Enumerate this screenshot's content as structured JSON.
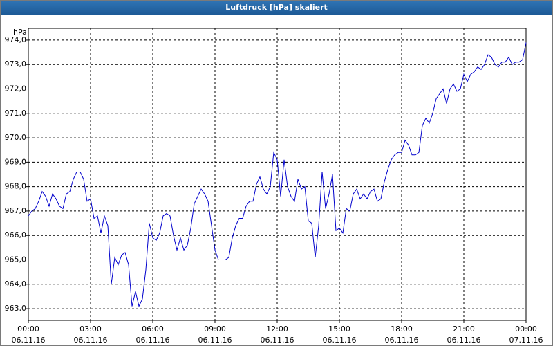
{
  "chart_data": {
    "type": "line",
    "title": "Luftdruck [hPa] skaliert",
    "y_label": "hPa",
    "x": [
      0,
      10,
      20,
      30,
      40,
      50,
      60,
      70,
      80,
      90,
      100,
      110,
      120,
      130,
      140,
      150,
      160,
      170,
      180,
      190,
      200,
      210,
      220,
      230,
      240,
      250,
      260,
      270,
      280,
      290,
      300,
      310,
      320,
      330,
      340,
      350,
      360,
      370,
      380,
      390,
      400,
      410,
      420,
      430,
      440,
      450,
      460,
      470,
      480,
      490,
      500,
      510,
      520,
      530,
      540,
      550,
      560,
      570,
      580,
      590,
      600,
      610,
      620,
      630,
      640,
      650,
      660,
      670,
      680,
      690,
      700,
      710,
      720,
      730,
      740,
      750,
      760,
      770,
      780,
      790,
      800,
      810,
      820,
      830,
      840,
      850,
      860,
      870,
      880,
      890,
      900,
      910,
      920,
      930,
      940,
      950,
      960,
      970,
      980,
      990,
      1000,
      1010,
      1020,
      1030,
      1040,
      1050,
      1060,
      1070,
      1080,
      1090,
      1100,
      1110,
      1120,
      1130,
      1140,
      1150,
      1160,
      1170,
      1180,
      1190,
      1200,
      1210,
      1220,
      1230,
      1240,
      1250,
      1260,
      1270,
      1280,
      1290,
      1300,
      1310,
      1320,
      1330,
      1340,
      1350,
      1360,
      1370,
      1380,
      1390,
      1400,
      1410,
      1420,
      1430,
      1440
    ],
    "series": [
      {
        "name": "Luftdruck",
        "color": "#0000cc",
        "values": [
          966.8,
          967.0,
          967.1,
          967.4,
          967.8,
          967.6,
          967.2,
          967.7,
          967.5,
          967.2,
          967.1,
          967.7,
          967.8,
          968.3,
          968.6,
          968.6,
          968.3,
          967.4,
          967.5,
          966.7,
          966.8,
          966.1,
          966.8,
          966.4,
          964.0,
          965.1,
          964.8,
          965.2,
          965.3,
          964.8,
          963.1,
          963.7,
          963.1,
          963.4,
          964.6,
          966.5,
          965.9,
          965.8,
          966.1,
          966.8,
          966.9,
          966.8,
          966.0,
          965.4,
          965.9,
          965.4,
          965.6,
          966.3,
          967.3,
          967.6,
          967.9,
          967.7,
          967.4,
          966.4,
          965.4,
          965.0,
          965.0,
          965.0,
          965.1,
          965.9,
          966.4,
          966.7,
          966.7,
          967.2,
          967.4,
          967.4,
          968.1,
          968.4,
          967.9,
          967.7,
          968.0,
          969.4,
          969.1,
          967.6,
          969.1,
          968.0,
          967.6,
          967.4,
          968.3,
          967.9,
          968.0,
          966.6,
          966.5,
          965.1,
          966.4,
          968.6,
          967.1,
          967.7,
          968.5,
          966.2,
          966.3,
          966.1,
          967.1,
          967.0,
          967.7,
          967.9,
          967.5,
          967.7,
          967.5,
          967.8,
          967.9,
          967.4,
          967.5,
          968.2,
          968.7,
          969.1,
          969.3,
          969.4,
          969.4,
          969.9,
          969.7,
          969.3,
          969.3,
          969.4,
          970.5,
          970.8,
          970.6,
          971.0,
          971.6,
          971.8,
          972.0,
          971.4,
          972.0,
          972.2,
          971.9,
          972.0,
          972.6,
          972.3,
          972.6,
          972.7,
          972.9,
          972.8,
          973.0,
          973.4,
          973.3,
          973.0,
          972.9,
          973.1,
          973.1,
          973.3,
          973.0,
          973.1,
          973.1,
          973.2,
          973.9
        ]
      }
    ],
    "xlim": [
      0,
      1440
    ],
    "xticks": [
      {
        "value": 0,
        "label": "00:00"
      },
      {
        "value": 180,
        "label": "03:00"
      },
      {
        "value": 360,
        "label": "06:00"
      },
      {
        "value": 540,
        "label": "09:00"
      },
      {
        "value": 720,
        "label": "12:00"
      },
      {
        "value": 900,
        "label": "15:00"
      },
      {
        "value": 1080,
        "label": "18:00"
      },
      {
        "value": 1260,
        "label": "21:00"
      },
      {
        "value": 1440,
        "label": "00:00"
      }
    ],
    "xtick_dates": [
      "06.11.16",
      "06.11.16",
      "06.11.16",
      "06.11.16",
      "06.11.16",
      "06.11.16",
      "06.11.16",
      "06.11.16",
      "07.11.16"
    ],
    "ylim": [
      962.52,
      974.48
    ],
    "yticks": [
      {
        "value": 963,
        "label": "963,0"
      },
      {
        "value": 964,
        "label": "964,0"
      },
      {
        "value": 965,
        "label": "965,0"
      },
      {
        "value": 966,
        "label": "966,0"
      },
      {
        "value": 967,
        "label": "967,0"
      },
      {
        "value": 968,
        "label": "968,0"
      },
      {
        "value": 969,
        "label": "969,0"
      },
      {
        "value": 970,
        "label": "970,0"
      },
      {
        "value": 971,
        "label": "971,0"
      },
      {
        "value": 972,
        "label": "972,0"
      },
      {
        "value": 973,
        "label": "973,0"
      },
      {
        "value": 974,
        "label": "974,0"
      }
    ],
    "grid": true
  }
}
